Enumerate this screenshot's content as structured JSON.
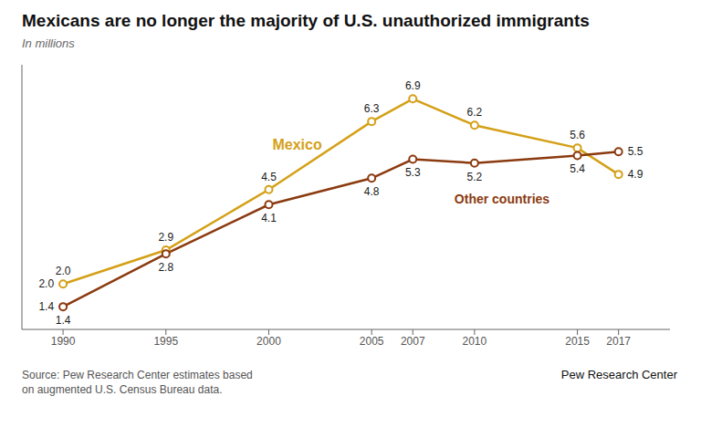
{
  "chart_data": {
    "type": "line",
    "title": "Mexicans are no longer the majority of U.S. unauthorized immigrants",
    "subtitle": "In millions",
    "x": [
      1990,
      1995,
      2000,
      2005,
      2007,
      2010,
      2015,
      2017
    ],
    "series": [
      {
        "name": "Mexico",
        "color": "#D4A017",
        "values": [
          2.0,
          2.9,
          4.5,
          6.3,
          6.9,
          6.2,
          5.6,
          4.9
        ],
        "value_labels": [
          "2.0",
          "2.9",
          "4.5",
          "6.3",
          "6.9",
          "6.2",
          "5.6",
          "4.9"
        ]
      },
      {
        "name": "Other countries",
        "color": "#8B3A0F",
        "values": [
          1.4,
          2.8,
          4.1,
          4.8,
          5.3,
          5.2,
          5.4,
          5.5
        ],
        "value_labels": [
          "1.4",
          "2.8",
          "4.1",
          "4.8",
          "5.3",
          "5.2",
          "5.4",
          "5.5"
        ]
      }
    ],
    "xlim": [
      1988.0,
      2019.5
    ],
    "xticks": [
      1990,
      1995,
      2000,
      2005,
      2007,
      2010,
      2015,
      2017
    ],
    "ylim": [
      0.8,
      7.8
    ],
    "tick_labels": "x",
    "data_labels": true,
    "marker": "circle",
    "grid": false,
    "annotations": [
      "Source: Pew Research Center estimates based\non augmented U.S. Census Bureau data.",
      "Pew Research Center"
    ]
  }
}
